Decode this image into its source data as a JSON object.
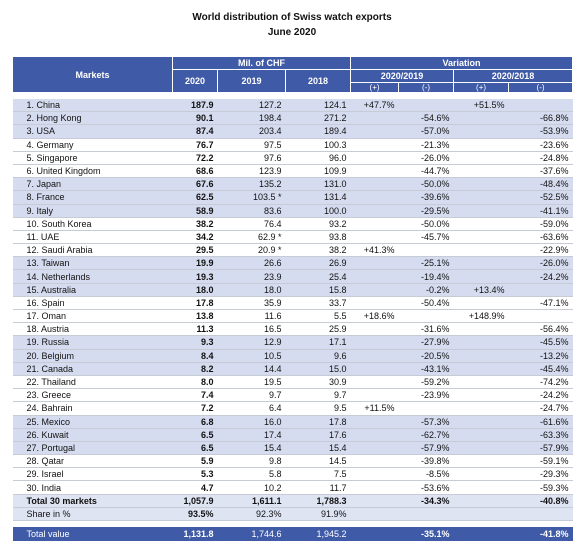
{
  "header": {
    "title": "World distribution of Swiss watch exports",
    "subtitle": "June 2020"
  },
  "columns": {
    "markets": "Markets",
    "mil_chf": "Mil. of CHF",
    "years": [
      "2020",
      "2019",
      "2018"
    ],
    "variation": "Variation",
    "periods": [
      "2020/2019",
      "2020/2018"
    ],
    "signs": [
      "(+)",
      "(-)",
      "(+)",
      "(-)"
    ]
  },
  "table": {
    "rows": [
      {
        "market": "1. China",
        "y2020": "187.9",
        "y2019": "127.2",
        "y2018": "124.1",
        "p1": "+47.7%",
        "p2": "+51.5%"
      },
      {
        "market": "2. Hong Kong",
        "y2020": "90.1",
        "y2019": "198.4",
        "y2018": "271.2",
        "m1": "-54.6%",
        "m2": "-66.8%"
      },
      {
        "market": "3. USA",
        "y2020": "87.4",
        "y2019": "203.4",
        "y2018": "189.4",
        "m1": "-57.0%",
        "m2": "-53.9%"
      },
      {
        "market": "4. Germany",
        "y2020": "76.7",
        "y2019": "97.5",
        "y2018": "100.3",
        "m1": "-21.3%",
        "m2": "-23.6%"
      },
      {
        "market": "5. Singapore",
        "y2020": "72.2",
        "y2019": "97.6",
        "y2018": "96.0",
        "m1": "-26.0%",
        "m2": "-24.8%"
      },
      {
        "market": "6. United Kingdom",
        "y2020": "68.6",
        "y2019": "123.9",
        "y2018": "109.9",
        "m1": "-44.7%",
        "m2": "-37.6%"
      },
      {
        "market": "7. Japan",
        "y2020": "67.6",
        "y2019": "135.2",
        "y2018": "131.0",
        "m1": "-50.0%",
        "m2": "-48.4%"
      },
      {
        "market": "8. France",
        "y2020": "62.5",
        "y2019": "103.5 *",
        "y2018": "131.4",
        "m1": "-39.6%",
        "m2": "-52.5%"
      },
      {
        "market": "9. Italy",
        "y2020": "58.9",
        "y2019": "83.6",
        "y2018": "100.0",
        "m1": "-29.5%",
        "m2": "-41.1%"
      },
      {
        "market": "10. South Korea",
        "y2020": "38.2",
        "y2019": "76.4",
        "y2018": "93.2",
        "m1": "-50.0%",
        "m2": "-59.0%"
      },
      {
        "market": "11. UAE",
        "y2020": "34.2",
        "y2019": "62.9 *",
        "y2018": "93.8",
        "m1": "-45.7%",
        "m2": "-63.6%"
      },
      {
        "market": "12. Saudi Arabia",
        "y2020": "29.5",
        "y2019": "20.9 *",
        "y2018": "38.2",
        "p1": "+41.3%",
        "m2": "-22.9%"
      },
      {
        "market": "13. Taiwan",
        "y2020": "19.9",
        "y2019": "26.6",
        "y2018": "26.9",
        "m1": "-25.1%",
        "m2": "-26.0%"
      },
      {
        "market": "14. Netherlands",
        "y2020": "19.3",
        "y2019": "23.9",
        "y2018": "25.4",
        "m1": "-19.4%",
        "m2": "-24.2%"
      },
      {
        "market": "15. Australia",
        "y2020": "18.0",
        "y2019": "18.0",
        "y2018": "15.8",
        "m1": "-0.2%",
        "p2": "+13.4%"
      },
      {
        "market": "16. Spain",
        "y2020": "17.8",
        "y2019": "35.9",
        "y2018": "33.7",
        "m1": "-50.4%",
        "m2": "-47.1%"
      },
      {
        "market": "17. Oman",
        "y2020": "13.8",
        "y2019": "11.6",
        "y2018": "5.5",
        "p1": "+18.6%",
        "p2": "+148.9%"
      },
      {
        "market": "18. Austria",
        "y2020": "11.3",
        "y2019": "16.5",
        "y2018": "25.9",
        "m1": "-31.6%",
        "m2": "-56.4%"
      },
      {
        "market": "19. Russia",
        "y2020": "9.3",
        "y2019": "12.9",
        "y2018": "17.1",
        "m1": "-27.9%",
        "m2": "-45.5%"
      },
      {
        "market": "20. Belgium",
        "y2020": "8.4",
        "y2019": "10.5",
        "y2018": "9.6",
        "m1": "-20.5%",
        "m2": "-13.2%"
      },
      {
        "market": "21. Canada",
        "y2020": "8.2",
        "y2019": "14.4",
        "y2018": "15.0",
        "m1": "-43.1%",
        "m2": "-45.4%"
      },
      {
        "market": "22. Thailand",
        "y2020": "8.0",
        "y2019": "19.5",
        "y2018": "30.9",
        "m1": "-59.2%",
        "m2": "-74.2%"
      },
      {
        "market": "23. Greece",
        "y2020": "7.4",
        "y2019": "9.7",
        "y2018": "9.7",
        "m1": "-23.9%",
        "m2": "-24.2%"
      },
      {
        "market": "24. Bahrain",
        "y2020": "7.2",
        "y2019": "6.4",
        "y2018": "9.5",
        "p1": "+11.5%",
        "m2": "-24.7%"
      },
      {
        "market": "25. Mexico",
        "y2020": "6.8",
        "y2019": "16.0",
        "y2018": "17.8",
        "m1": "-57.3%",
        "m2": "-61.6%"
      },
      {
        "market": "26. Kuwait",
        "y2020": "6.5",
        "y2019": "17.4",
        "y2018": "17.6",
        "m1": "-62.7%",
        "m2": "-63.3%"
      },
      {
        "market": "27. Portugal",
        "y2020": "6.5",
        "y2019": "15.4",
        "y2018": "15.4",
        "m1": "-57.9%",
        "m2": "-57.9%"
      },
      {
        "market": "28. Qatar",
        "y2020": "5.9",
        "y2019": "9.8",
        "y2018": "14.5",
        "m1": "-39.8%",
        "m2": "-59.1%"
      },
      {
        "market": "29. Israel",
        "y2020": "5.3",
        "y2019": "5.8",
        "y2018": "7.5",
        "m1": "-8.5%",
        "m2": "-29.3%"
      },
      {
        "market": "30. India",
        "y2020": "4.7",
        "y2019": "10.2",
        "y2018": "11.7",
        "m1": "-53.6%",
        "m2": "-59.3%"
      }
    ],
    "totals": [
      {
        "market": "Total 30 markets",
        "y2020": "1,057.9",
        "y2019": "1,611.1",
        "y2018": "1,788.3",
        "m1": "-34.3%",
        "m2": "-40.8%"
      },
      {
        "market": "Share in %",
        "y2020": "93.5%",
        "y2019": "92.3%",
        "y2018": "91.9%"
      }
    ],
    "total_value": {
      "market": "Total value",
      "y2020": "1,131.8",
      "y2019": "1,744.6",
      "y2018": "1,945.2",
      "m1": "-35.1%",
      "m2": "-41.8%"
    }
  }
}
